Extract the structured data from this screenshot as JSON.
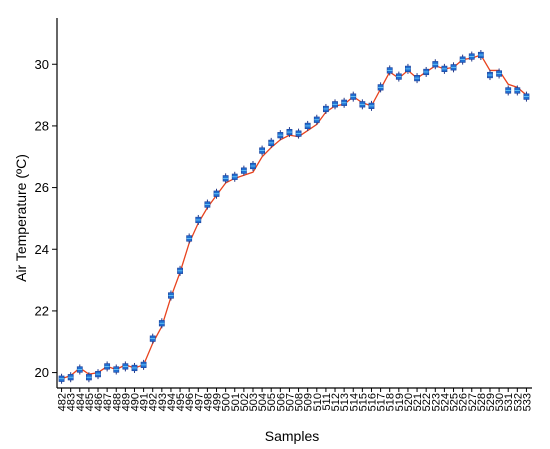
{
  "chart_data": {
    "type": "line",
    "title": "",
    "xlabel": "Samples",
    "ylabel": "Air Temperature (ºC)",
    "ylim": [
      19.5,
      31.5
    ],
    "yticks": [
      20,
      22,
      24,
      26,
      28,
      30
    ],
    "grid": false,
    "legend": "none",
    "x": [
      482,
      483,
      484,
      485,
      486,
      487,
      488,
      489,
      490,
      491,
      492,
      493,
      494,
      495,
      496,
      497,
      498,
      499,
      500,
      501,
      502,
      503,
      504,
      505,
      506,
      507,
      508,
      509,
      510,
      511,
      512,
      513,
      514,
      515,
      516,
      517,
      518,
      519,
      520,
      521,
      522,
      523,
      524,
      525,
      526,
      527,
      528,
      529,
      530,
      531,
      532,
      533
    ],
    "series": [
      {
        "kind": "boxplot-medians",
        "color": "#1f6fd1",
        "values": [
          19.8,
          19.85,
          20.1,
          19.85,
          19.95,
          20.2,
          20.1,
          20.2,
          20.15,
          20.25,
          21.1,
          21.6,
          22.5,
          23.3,
          24.35,
          24.95,
          25.45,
          25.8,
          26.3,
          26.35,
          26.55,
          26.7,
          27.2,
          27.45,
          27.7,
          27.8,
          27.75,
          28.0,
          28.2,
          28.55,
          28.7,
          28.75,
          28.95,
          28.7,
          28.65,
          29.25,
          29.8,
          29.6,
          29.85,
          29.55,
          29.75,
          30.0,
          29.85,
          29.9,
          30.15,
          30.25,
          30.3,
          29.65,
          29.7,
          29.15,
          29.15,
          28.95
        ]
      },
      {
        "kind": "line",
        "color": "#e8431e",
        "values": [
          19.8,
          19.9,
          20.15,
          19.95,
          20.0,
          20.2,
          20.1,
          20.25,
          20.15,
          20.25,
          20.95,
          21.5,
          22.45,
          23.25,
          24.2,
          24.85,
          25.35,
          25.75,
          26.15,
          26.3,
          26.4,
          26.5,
          27.0,
          27.3,
          27.55,
          27.7,
          27.65,
          27.85,
          28.05,
          28.45,
          28.65,
          28.7,
          28.95,
          28.75,
          28.65,
          29.2,
          29.75,
          29.55,
          29.8,
          29.55,
          29.75,
          29.95,
          29.85,
          29.9,
          30.15,
          30.2,
          30.3,
          29.8,
          29.8,
          29.35,
          29.25,
          29.0
        ]
      }
    ]
  }
}
